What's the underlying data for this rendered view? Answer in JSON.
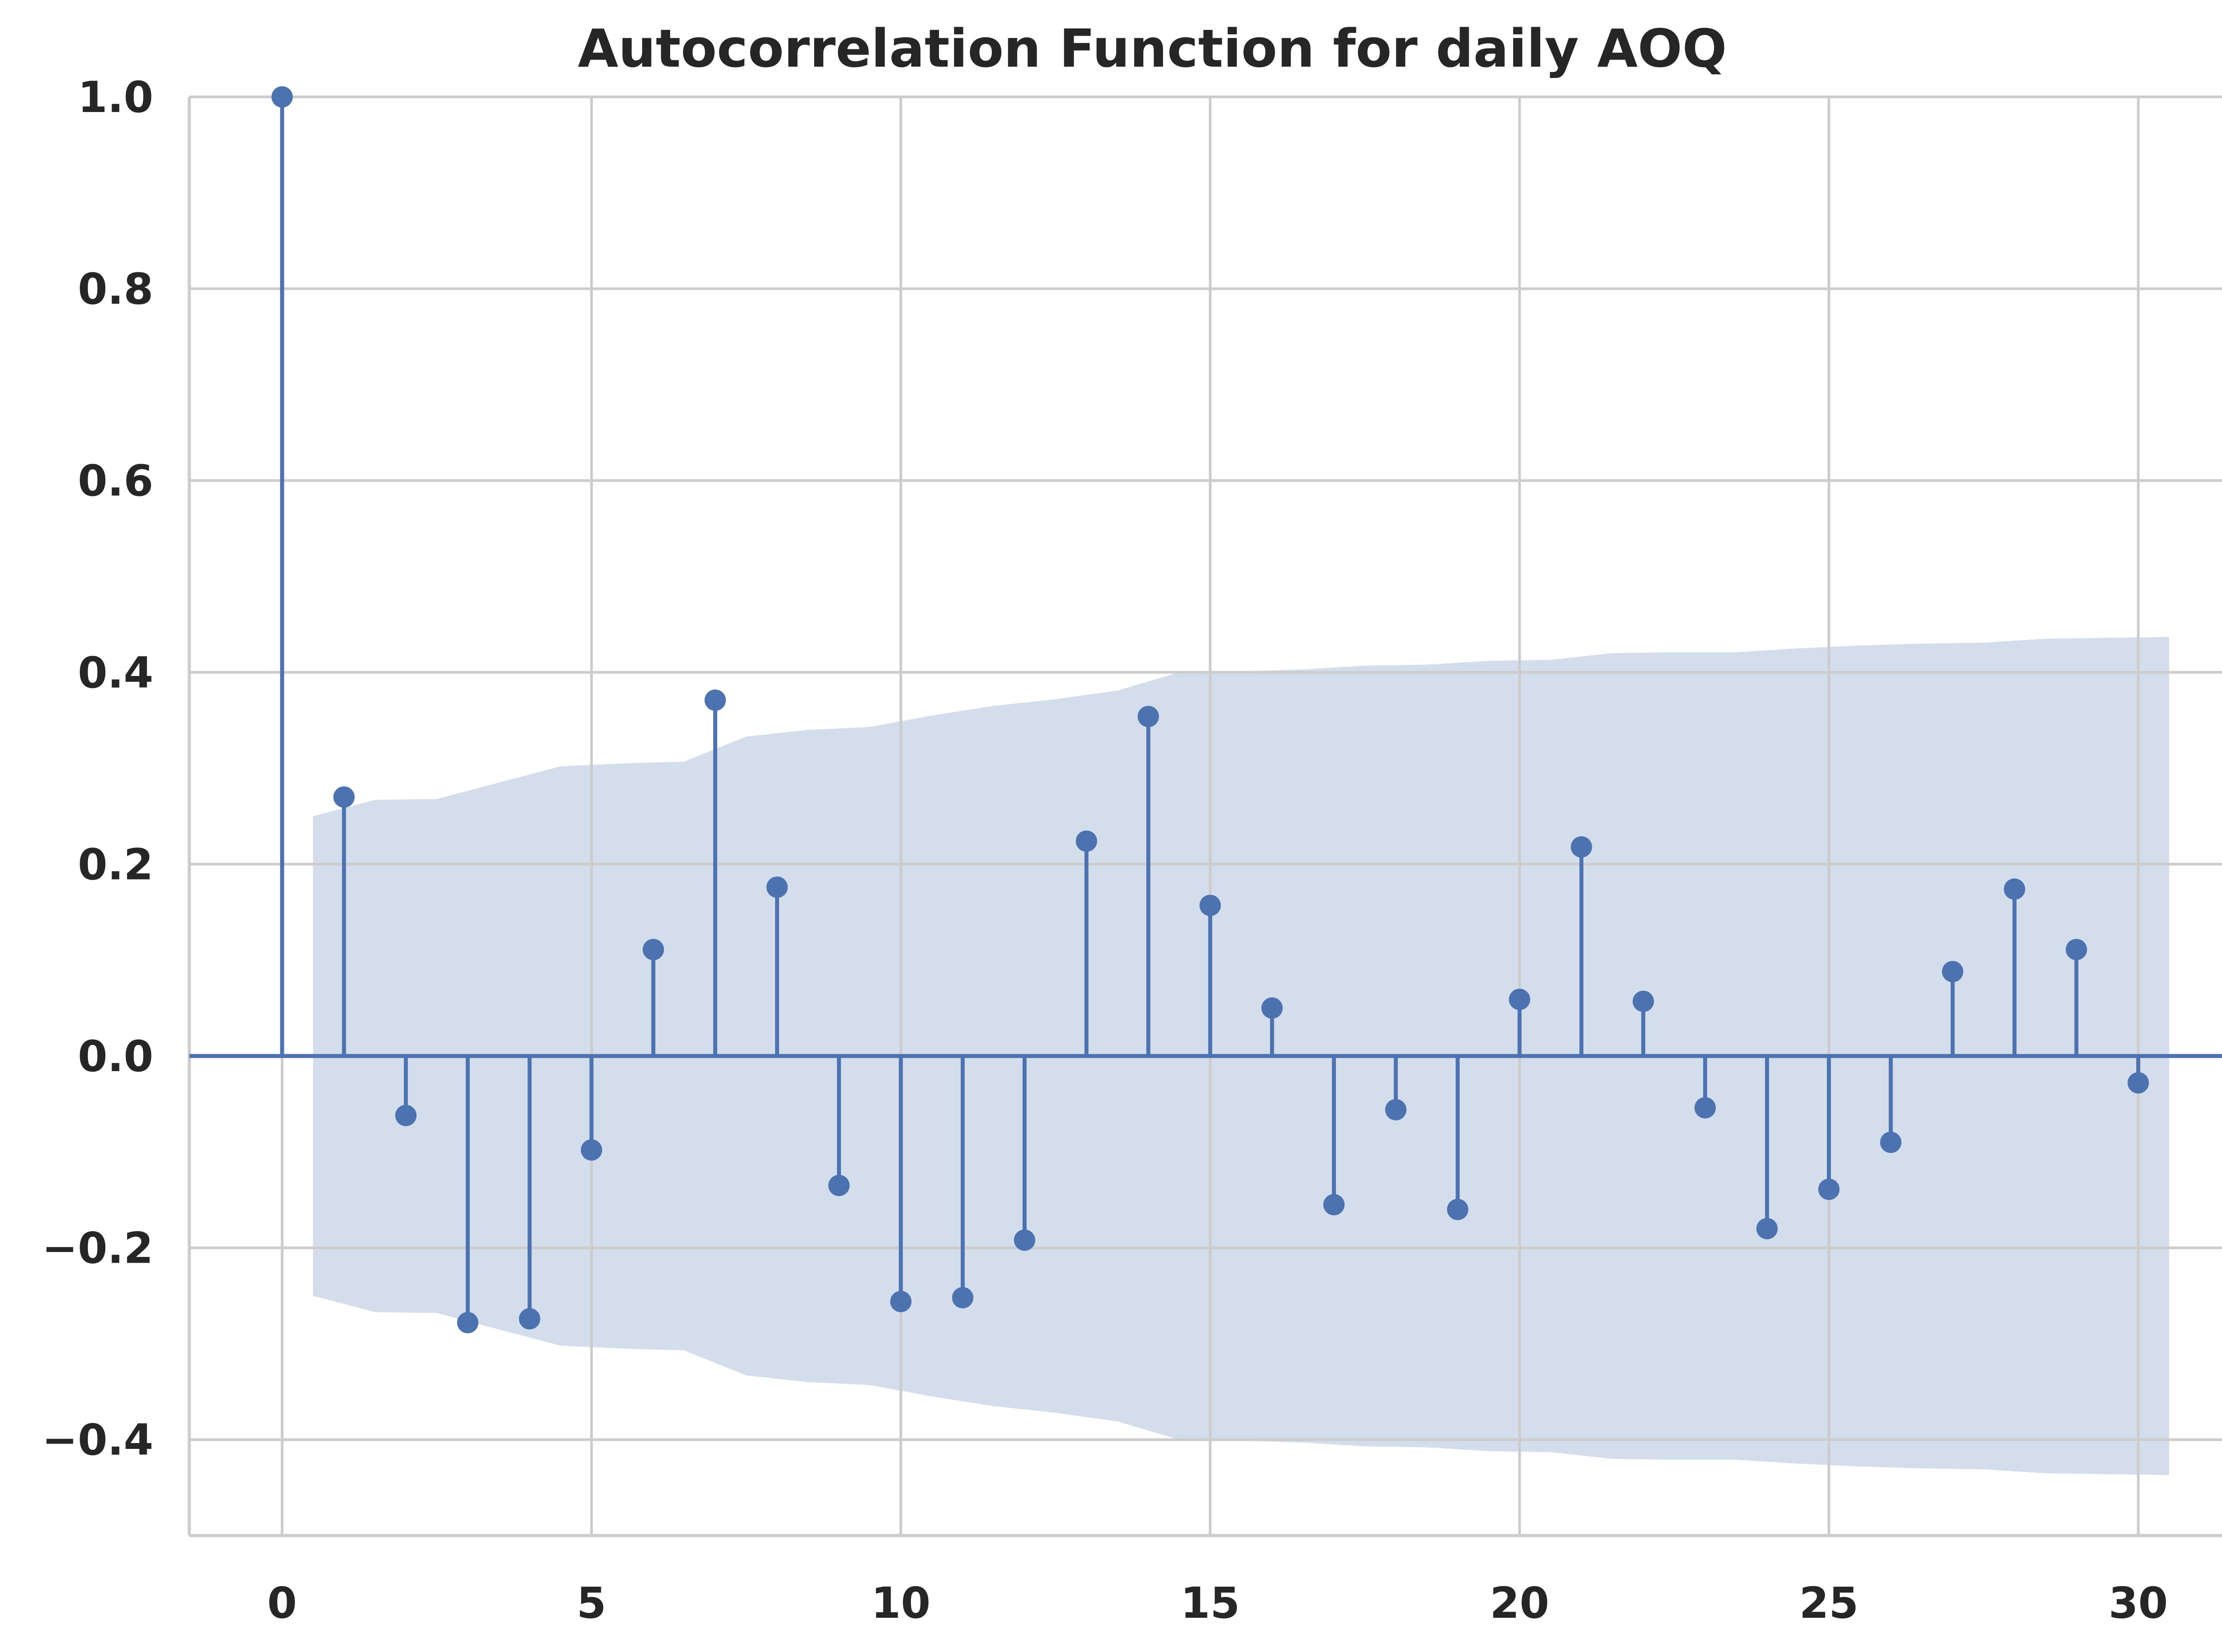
{
  "chart_data": {
    "type": "stem",
    "title": "Autocorrelation Function for daily AOQ",
    "xlabel": "",
    "ylabel": "",
    "xlim": [
      -1.5,
      32
    ],
    "ylim": [
      -0.5,
      1.0
    ],
    "x_ticks": [
      0,
      5,
      10,
      15,
      20,
      25,
      30
    ],
    "x_tick_labels": [
      "0",
      "5",
      "10",
      "15",
      "20",
      "25",
      "30"
    ],
    "y_ticks": [
      -0.4,
      -0.2,
      0.0,
      0.2,
      0.4,
      0.6,
      0.8,
      1.0
    ],
    "y_tick_labels": [
      "−0.4",
      "−0.2",
      "0.0",
      "0.2",
      "0.4",
      "0.6",
      "0.8",
      "1.0"
    ],
    "grid": true,
    "colors": {
      "stem": "#4c72b0",
      "band": "#d3ddeb",
      "grid": "#cccccc",
      "axis": "#cccccc",
      "text": "#262626"
    },
    "lags": [
      0,
      1,
      2,
      3,
      4,
      5,
      6,
      7,
      8,
      9,
      10,
      11,
      12,
      13,
      14,
      15,
      16,
      17,
      18,
      19,
      20,
      21,
      22,
      23,
      24,
      25,
      26,
      27,
      28,
      29,
      30
    ],
    "acf": [
      1.0,
      0.27,
      -0.062,
      -0.278,
      -0.274,
      -0.098,
      0.111,
      0.371,
      0.176,
      -0.135,
      -0.256,
      -0.252,
      -0.192,
      0.224,
      0.354,
      0.157,
      0.05,
      -0.155,
      -0.056,
      -0.16,
      0.059,
      0.218,
      0.057,
      -0.054,
      -0.18,
      -0.139,
      -0.09,
      0.088,
      0.174,
      0.111,
      -0.028
    ],
    "confidence_band": {
      "x": [
        0.5,
        1.5,
        2.5,
        3.5,
        4.5,
        5.5,
        6.5,
        7.5,
        8.5,
        9.5,
        10.5,
        11.5,
        12.5,
        13.5,
        14.5,
        15.5,
        16.5,
        17.5,
        18.5,
        19.5,
        20.5,
        21.5,
        22.5,
        23.5,
        24.5,
        25.5,
        26.5,
        27.5,
        28.5,
        29.5,
        30.5
      ],
      "upper": [
        0.25,
        0.267,
        0.268,
        0.285,
        0.302,
        0.305,
        0.307,
        0.333,
        0.34,
        0.343,
        0.355,
        0.365,
        0.372,
        0.381,
        0.4,
        0.401,
        0.403,
        0.407,
        0.408,
        0.412,
        0.413,
        0.42,
        0.421,
        0.421,
        0.425,
        0.428,
        0.43,
        0.431,
        0.435,
        0.436,
        0.437
      ],
      "lower": [
        -0.25,
        -0.267,
        -0.268,
        -0.285,
        -0.302,
        -0.305,
        -0.307,
        -0.333,
        -0.34,
        -0.343,
        -0.355,
        -0.365,
        -0.372,
        -0.381,
        -0.4,
        -0.401,
        -0.403,
        -0.407,
        -0.408,
        -0.412,
        -0.413,
        -0.42,
        -0.421,
        -0.421,
        -0.425,
        -0.428,
        -0.43,
        -0.431,
        -0.435,
        -0.436,
        -0.437
      ]
    }
  }
}
